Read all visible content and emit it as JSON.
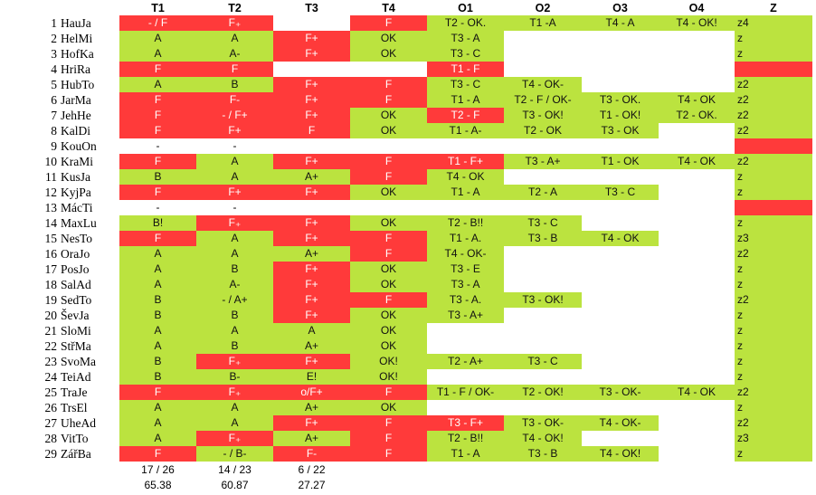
{
  "colors": {
    "fail": "#ff3a3a",
    "pass": "#bbe33f"
  },
  "headers": [
    "T1",
    "T2",
    "T3",
    "T4",
    "O1",
    "O2",
    "O3",
    "O4",
    "Z"
  ],
  "rows": [
    {
      "num": "1",
      "name": "HauJa",
      "cells": [
        [
          "- / F",
          "r"
        ],
        [
          "F₊",
          "r"
        ],
        [
          "",
          "w"
        ],
        [
          "F",
          "r"
        ],
        [
          "T2 - OK.",
          "g"
        ],
        [
          "T1 -A",
          "g"
        ],
        [
          "T4 - A",
          "g"
        ],
        [
          "T4 - OK!",
          "g"
        ],
        [
          "z4",
          "g"
        ]
      ]
    },
    {
      "num": "2",
      "name": "HelMi",
      "cells": [
        [
          "A",
          "g"
        ],
        [
          "A",
          "g"
        ],
        [
          "F+",
          "r"
        ],
        [
          "OK",
          "g"
        ],
        [
          "T3 - A",
          "g"
        ],
        [
          "",
          "w"
        ],
        [
          "",
          "w"
        ],
        [
          "",
          "w"
        ],
        [
          "z",
          "g"
        ]
      ]
    },
    {
      "num": "3",
      "name": "HofKa",
      "cells": [
        [
          "A",
          "g"
        ],
        [
          "A-",
          "g"
        ],
        [
          "F+",
          "r"
        ],
        [
          "OK",
          "g"
        ],
        [
          "T3 - C",
          "g"
        ],
        [
          "",
          "w"
        ],
        [
          "",
          "w"
        ],
        [
          "",
          "w"
        ],
        [
          "z",
          "g"
        ]
      ]
    },
    {
      "num": "4",
      "name": "HriRa",
      "cells": [
        [
          "F",
          "r"
        ],
        [
          "F",
          "r"
        ],
        [
          "",
          "w"
        ],
        [
          "",
          "w"
        ],
        [
          "T1 - F",
          "r"
        ],
        [
          "",
          "w"
        ],
        [
          "",
          "w"
        ],
        [
          "",
          "w"
        ],
        [
          "",
          "r"
        ]
      ]
    },
    {
      "num": "5",
      "name": "HubTo",
      "cells": [
        [
          "A",
          "g"
        ],
        [
          "B",
          "g"
        ],
        [
          "F+",
          "r"
        ],
        [
          "F",
          "r"
        ],
        [
          "T3 - C",
          "g"
        ],
        [
          "T4 - OK-",
          "g"
        ],
        [
          "",
          "w"
        ],
        [
          "",
          "w"
        ],
        [
          "z2",
          "g"
        ]
      ]
    },
    {
      "num": "6",
      "name": "JarMa",
      "cells": [
        [
          "F",
          "r"
        ],
        [
          "F-",
          "r"
        ],
        [
          "F+",
          "r"
        ],
        [
          "F",
          "r"
        ],
        [
          "T1 - A",
          "g"
        ],
        [
          "T2 - F / OK-",
          "g"
        ],
        [
          "T3 - OK.",
          "g"
        ],
        [
          "T4 - OK",
          "g"
        ],
        [
          "z2",
          "g"
        ]
      ]
    },
    {
      "num": "7",
      "name": "JehHe",
      "cells": [
        [
          "F",
          "r"
        ],
        [
          "- / F+",
          "r"
        ],
        [
          "F+",
          "r"
        ],
        [
          "OK",
          "g"
        ],
        [
          "T2 - F",
          "r"
        ],
        [
          "T3 - OK!",
          "g"
        ],
        [
          "T1 - OK!",
          "g"
        ],
        [
          "T2 - OK.",
          "g"
        ],
        [
          "z2",
          "g"
        ]
      ]
    },
    {
      "num": "8",
      "name": "KalDi",
      "cells": [
        [
          "F",
          "r"
        ],
        [
          "F+",
          "r"
        ],
        [
          "F",
          "r"
        ],
        [
          "OK",
          "g"
        ],
        [
          "T1 - A-",
          "g"
        ],
        [
          "T2 - OK",
          "g"
        ],
        [
          "T3 - OK",
          "g"
        ],
        [
          "",
          "w"
        ],
        [
          "z2",
          "g"
        ]
      ]
    },
    {
      "num": "9",
      "name": "KouOn",
      "cells": [
        [
          "-",
          "w"
        ],
        [
          "-",
          "w"
        ],
        [
          "",
          "w"
        ],
        [
          "",
          "w"
        ],
        [
          "",
          "w"
        ],
        [
          "",
          "w"
        ],
        [
          "",
          "w"
        ],
        [
          "",
          "w"
        ],
        [
          "",
          "r"
        ]
      ]
    },
    {
      "num": "10",
      "name": "KraMi",
      "cells": [
        [
          "F",
          "r"
        ],
        [
          "A",
          "g"
        ],
        [
          "F+",
          "r"
        ],
        [
          "F",
          "r"
        ],
        [
          "T1 - F+",
          "r"
        ],
        [
          "T3 - A+",
          "g"
        ],
        [
          "T1 - OK",
          "g"
        ],
        [
          "T4 - OK",
          "g"
        ],
        [
          "z2",
          "g"
        ]
      ]
    },
    {
      "num": "11",
      "name": "KusJa",
      "cells": [
        [
          "B",
          "g"
        ],
        [
          "A",
          "g"
        ],
        [
          "A+",
          "g"
        ],
        [
          "F",
          "r"
        ],
        [
          "T4 - OK",
          "g"
        ],
        [
          "",
          "w"
        ],
        [
          "",
          "w"
        ],
        [
          "",
          "w"
        ],
        [
          "z",
          "g"
        ]
      ]
    },
    {
      "num": "12",
      "name": "KyjPa",
      "cells": [
        [
          "F",
          "r"
        ],
        [
          "F+",
          "r"
        ],
        [
          "F+",
          "r"
        ],
        [
          "OK",
          "g"
        ],
        [
          "T1 - A",
          "g"
        ],
        [
          "T2 - A",
          "g"
        ],
        [
          "T3 - C",
          "g"
        ],
        [
          "",
          "w"
        ],
        [
          "z",
          "g"
        ]
      ]
    },
    {
      "num": "13",
      "name": "MácTi",
      "cells": [
        [
          "-",
          "w"
        ],
        [
          "-",
          "w"
        ],
        [
          "",
          "w"
        ],
        [
          "",
          "w"
        ],
        [
          "",
          "w"
        ],
        [
          "",
          "w"
        ],
        [
          "",
          "w"
        ],
        [
          "",
          "w"
        ],
        [
          "",
          "r"
        ]
      ]
    },
    {
      "num": "14",
      "name": "MaxLu",
      "cells": [
        [
          "B!",
          "g"
        ],
        [
          "F₊",
          "r"
        ],
        [
          "F+",
          "r"
        ],
        [
          "OK",
          "g"
        ],
        [
          "T2 - B!!",
          "g"
        ],
        [
          "T3 - C",
          "g"
        ],
        [
          "",
          "w"
        ],
        [
          "",
          "w"
        ],
        [
          "z",
          "g"
        ]
      ]
    },
    {
      "num": "15",
      "name": "NesTo",
      "cells": [
        [
          "F",
          "r"
        ],
        [
          "A",
          "g"
        ],
        [
          "F+",
          "r"
        ],
        [
          "F",
          "r"
        ],
        [
          "T1 - A.",
          "g"
        ],
        [
          "T3 - B",
          "g"
        ],
        [
          "T4 - OK",
          "g"
        ],
        [
          "",
          "w"
        ],
        [
          "z3",
          "g"
        ]
      ]
    },
    {
      "num": "16",
      "name": "OraJo",
      "cells": [
        [
          "A",
          "g"
        ],
        [
          "A",
          "g"
        ],
        [
          "A+",
          "g"
        ],
        [
          "F",
          "r"
        ],
        [
          "T4 - OK-",
          "g"
        ],
        [
          "",
          "w"
        ],
        [
          "",
          "w"
        ],
        [
          "",
          "w"
        ],
        [
          "z2",
          "g"
        ]
      ]
    },
    {
      "num": "17",
      "name": "PosJo",
      "cells": [
        [
          "A",
          "g"
        ],
        [
          "B",
          "g"
        ],
        [
          "F+",
          "r"
        ],
        [
          "OK",
          "g"
        ],
        [
          "T3 - E",
          "g"
        ],
        [
          "",
          "w"
        ],
        [
          "",
          "w"
        ],
        [
          "",
          "w"
        ],
        [
          "z",
          "g"
        ]
      ]
    },
    {
      "num": "18",
      "name": "SalAd",
      "cells": [
        [
          "A",
          "g"
        ],
        [
          "A-",
          "g"
        ],
        [
          "F+",
          "r"
        ],
        [
          "OK",
          "g"
        ],
        [
          "T3 - A",
          "g"
        ],
        [
          "",
          "w"
        ],
        [
          "",
          "w"
        ],
        [
          "",
          "w"
        ],
        [
          "z",
          "g"
        ]
      ]
    },
    {
      "num": "19",
      "name": "SedTo",
      "cells": [
        [
          "B",
          "g"
        ],
        [
          "- / A+",
          "g"
        ],
        [
          "F+",
          "r"
        ],
        [
          "F",
          "r"
        ],
        [
          "T3 - A.",
          "g"
        ],
        [
          "T3 - OK!",
          "g"
        ],
        [
          "",
          "w"
        ],
        [
          "",
          "w"
        ],
        [
          "z2",
          "g"
        ]
      ]
    },
    {
      "num": "20",
      "name": "ŠevJa",
      "cells": [
        [
          "B",
          "g"
        ],
        [
          "B",
          "g"
        ],
        [
          "F+",
          "r"
        ],
        [
          "OK",
          "g"
        ],
        [
          "T3 - A+",
          "g"
        ],
        [
          "",
          "w"
        ],
        [
          "",
          "w"
        ],
        [
          "",
          "w"
        ],
        [
          "z",
          "g"
        ]
      ]
    },
    {
      "num": "21",
      "name": "SloMi",
      "cells": [
        [
          "A",
          "g"
        ],
        [
          "A",
          "g"
        ],
        [
          "A",
          "g"
        ],
        [
          "OK",
          "g"
        ],
        [
          "",
          "w"
        ],
        [
          "",
          "w"
        ],
        [
          "",
          "w"
        ],
        [
          "",
          "w"
        ],
        [
          "z",
          "g"
        ]
      ]
    },
    {
      "num": "22",
      "name": "StřMa",
      "cells": [
        [
          "A",
          "g"
        ],
        [
          "B",
          "g"
        ],
        [
          "A+",
          "g"
        ],
        [
          "OK",
          "g"
        ],
        [
          "",
          "w"
        ],
        [
          "",
          "w"
        ],
        [
          "",
          "w"
        ],
        [
          "",
          "w"
        ],
        [
          "z",
          "g"
        ]
      ]
    },
    {
      "num": "23",
      "name": "SvoMa",
      "cells": [
        [
          "B",
          "g"
        ],
        [
          "F₊",
          "r"
        ],
        [
          "F+",
          "r"
        ],
        [
          "OK!",
          "g"
        ],
        [
          "T2 - A+",
          "g"
        ],
        [
          "T3 - C",
          "g"
        ],
        [
          "",
          "w"
        ],
        [
          "",
          "w"
        ],
        [
          "z",
          "g"
        ]
      ]
    },
    {
      "num": "24",
      "name": "TeiAd",
      "cells": [
        [
          "B",
          "g"
        ],
        [
          "B-",
          "g"
        ],
        [
          "E!",
          "g"
        ],
        [
          "OK!",
          "g"
        ],
        [
          "",
          "w"
        ],
        [
          "",
          "w"
        ],
        [
          "",
          "w"
        ],
        [
          "",
          "w"
        ],
        [
          "z",
          "g"
        ]
      ]
    },
    {
      "num": "25",
      "name": "TraJe",
      "cells": [
        [
          "F",
          "r"
        ],
        [
          "F₊",
          "r"
        ],
        [
          "o/F+",
          "r"
        ],
        [
          "F",
          "r"
        ],
        [
          "T1 - F / OK-",
          "g"
        ],
        [
          "T2 - OK!",
          "g"
        ],
        [
          "T3 - OK-",
          "g"
        ],
        [
          "T4 - OK",
          "g"
        ],
        [
          "z2",
          "g"
        ]
      ]
    },
    {
      "num": "26",
      "name": "TrsEl",
      "cells": [
        [
          "A",
          "g"
        ],
        [
          "A",
          "g"
        ],
        [
          "A+",
          "g"
        ],
        [
          "OK",
          "g"
        ],
        [
          "",
          "w"
        ],
        [
          "",
          "w"
        ],
        [
          "",
          "w"
        ],
        [
          "",
          "w"
        ],
        [
          "z",
          "g"
        ]
      ]
    },
    {
      "num": "27",
      "name": "UheAd",
      "cells": [
        [
          "A",
          "g"
        ],
        [
          "A",
          "g"
        ],
        [
          "F+",
          "r"
        ],
        [
          "F",
          "r"
        ],
        [
          "T3 - F+",
          "r"
        ],
        [
          "T3 - OK-",
          "g"
        ],
        [
          "T4 - OK-",
          "g"
        ],
        [
          "",
          "w"
        ],
        [
          "z2",
          "g"
        ]
      ]
    },
    {
      "num": "28",
      "name": "VitTo",
      "cells": [
        [
          "A",
          "g"
        ],
        [
          "F₊",
          "r"
        ],
        [
          "A+",
          "g"
        ],
        [
          "F",
          "r"
        ],
        [
          "T2 - B!!",
          "g"
        ],
        [
          "T4 - OK!",
          "g"
        ],
        [
          "",
          "w"
        ],
        [
          "",
          "w"
        ],
        [
          "z3",
          "g"
        ]
      ]
    },
    {
      "num": "29",
      "name": "ZářBa",
      "cells": [
        [
          "F",
          "r"
        ],
        [
          "- / B-",
          "g"
        ],
        [
          "F-",
          "r"
        ],
        [
          "F",
          "r"
        ],
        [
          "T1 - A",
          "g"
        ],
        [
          "T3 - B",
          "g"
        ],
        [
          "T4 - OK!",
          "g"
        ],
        [
          "",
          "w"
        ],
        [
          "z",
          "g"
        ]
      ]
    }
  ],
  "summary": {
    "ratios": [
      "17 / 26",
      "14 / 23",
      "6 / 22"
    ],
    "percentages": [
      "65.38",
      "60.87",
      "27.27"
    ]
  }
}
